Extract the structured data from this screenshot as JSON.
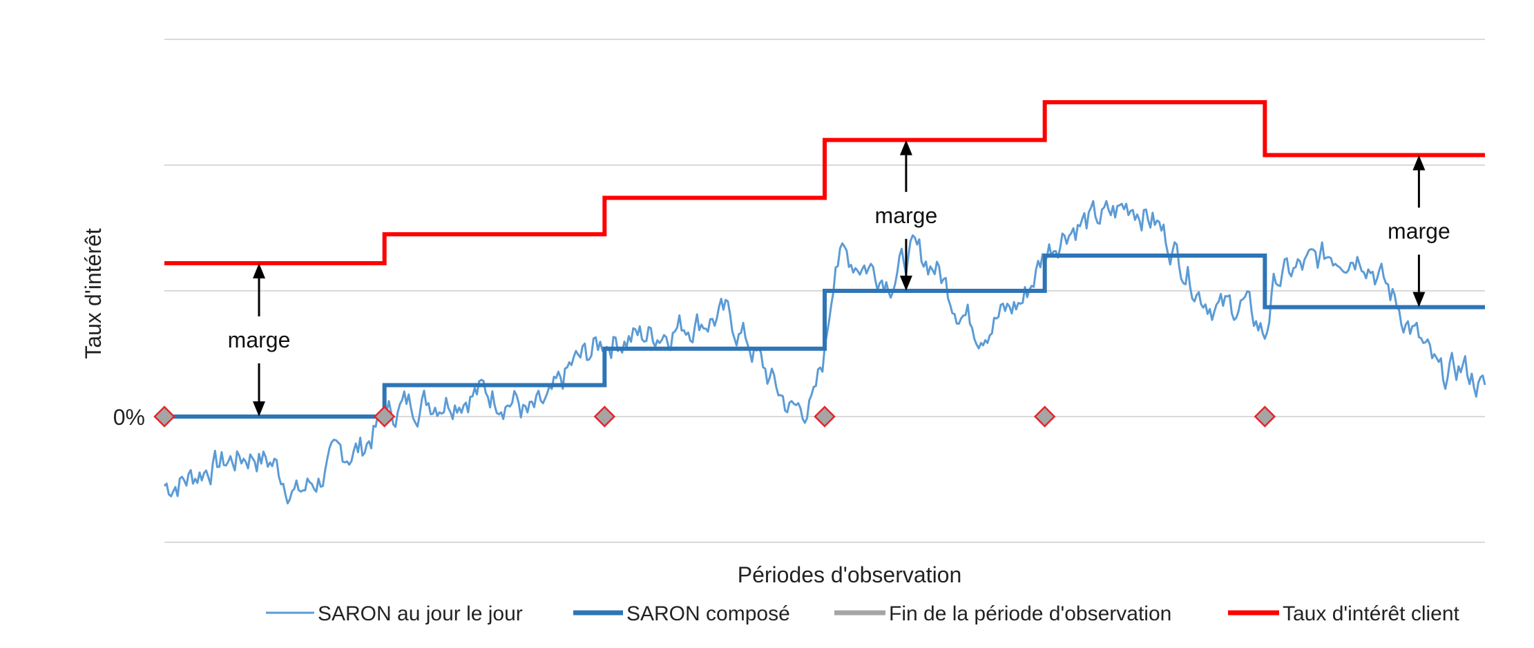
{
  "chart_data": {
    "type": "line",
    "ylabel": "Taux d'intérêt",
    "xlabel": "Périodes d'observation",
    "y_tick_label": "0%",
    "xlim": [
      0,
      6
    ],
    "ylim": [
      -1,
      3
    ],
    "grid": true,
    "legend_position": "bottom",
    "colors": {
      "daily": "#5b9bd5",
      "compound": "#2e75b6",
      "period_end": "#a5a5a5",
      "marker_border": "#e8232a",
      "client_rate": "#ff0000",
      "grid": "#d9d9d9",
      "annotation": "#000000"
    },
    "legend": [
      {
        "key": "daily",
        "label": "SARON au jour le jour"
      },
      {
        "key": "compound",
        "label": "SARON composé"
      },
      {
        "key": "period_end",
        "label": "Fin de la période d'observation"
      },
      {
        "key": "client_rate",
        "label": "Taux d'intérêt client"
      }
    ],
    "period_end_x": [
      0,
      1,
      2,
      3,
      4,
      5
    ],
    "saron_compound": [
      {
        "x0": 0,
        "x1": 1,
        "y": 0.0
      },
      {
        "x0": 1,
        "x1": 2,
        "y": 0.25
      },
      {
        "x0": 2,
        "x1": 3,
        "y": 0.54
      },
      {
        "x0": 3,
        "x1": 4,
        "y": 1.0
      },
      {
        "x0": 4,
        "x1": 5,
        "y": 1.28
      },
      {
        "x0": 5,
        "x1": 6,
        "y": 0.87
      }
    ],
    "client_rate": [
      {
        "x0": 0,
        "x1": 1,
        "y": 1.22
      },
      {
        "x0": 1,
        "x1": 2,
        "y": 1.45
      },
      {
        "x0": 2,
        "x1": 3,
        "y": 1.74
      },
      {
        "x0": 3,
        "x1": 4,
        "y": 2.2
      },
      {
        "x0": 4,
        "x1": 5,
        "y": 2.5
      },
      {
        "x0": 5,
        "x1": 6,
        "y": 2.08
      }
    ],
    "saron_daily_anchors": [
      [
        0.0,
        -0.55
      ],
      [
        0.1,
        -0.5
      ],
      [
        0.2,
        -0.4
      ],
      [
        0.4,
        -0.3
      ],
      [
        0.5,
        -0.38
      ],
      [
        0.6,
        -0.62
      ],
      [
        0.7,
        -0.5
      ],
      [
        0.8,
        -0.3
      ],
      [
        0.9,
        -0.25
      ],
      [
        1.0,
        0.0
      ],
      [
        1.1,
        0.1
      ],
      [
        1.3,
        0.15
      ],
      [
        1.45,
        0.2
      ],
      [
        1.6,
        0.12
      ],
      [
        1.65,
        0.0
      ],
      [
        1.75,
        0.1
      ],
      [
        1.85,
        0.4
      ],
      [
        2.0,
        0.6
      ],
      [
        2.2,
        0.65
      ],
      [
        2.4,
        0.75
      ],
      [
        2.55,
        0.8
      ],
      [
        2.65,
        0.6
      ],
      [
        2.75,
        0.3
      ],
      [
        2.85,
        0.05
      ],
      [
        2.95,
        0.1
      ],
      [
        3.0,
        0.5
      ],
      [
        3.05,
        1.3
      ],
      [
        3.2,
        1.2
      ],
      [
        3.3,
        1.1
      ],
      [
        3.4,
        1.3
      ],
      [
        3.5,
        1.2
      ],
      [
        3.6,
        0.9
      ],
      [
        3.7,
        0.7
      ],
      [
        3.8,
        0.8
      ],
      [
        3.9,
        0.92
      ],
      [
        4.0,
        1.3
      ],
      [
        4.1,
        1.5
      ],
      [
        4.3,
        1.6
      ],
      [
        4.4,
        1.7
      ],
      [
        4.5,
        1.55
      ],
      [
        4.6,
        1.3
      ],
      [
        4.7,
        1.0
      ],
      [
        4.8,
        0.85
      ],
      [
        4.9,
        0.9
      ],
      [
        5.0,
        0.65
      ],
      [
        5.05,
        1.1
      ],
      [
        5.2,
        1.2
      ],
      [
        5.3,
        1.3
      ],
      [
        5.45,
        1.3
      ],
      [
        5.6,
        0.9
      ],
      [
        5.7,
        0.6
      ],
      [
        5.8,
        0.3
      ],
      [
        5.9,
        0.4
      ],
      [
        6.0,
        0.2
      ]
    ],
    "annotations": [
      {
        "label": "marge",
        "x": 0.43,
        "y_from": 0.0,
        "y_to": 1.22
      },
      {
        "label": "marge",
        "x": 3.37,
        "y_from": 1.0,
        "y_to": 2.2
      },
      {
        "label": "marge",
        "x": 5.7,
        "y_from": 0.87,
        "y_to": 2.08
      }
    ]
  }
}
